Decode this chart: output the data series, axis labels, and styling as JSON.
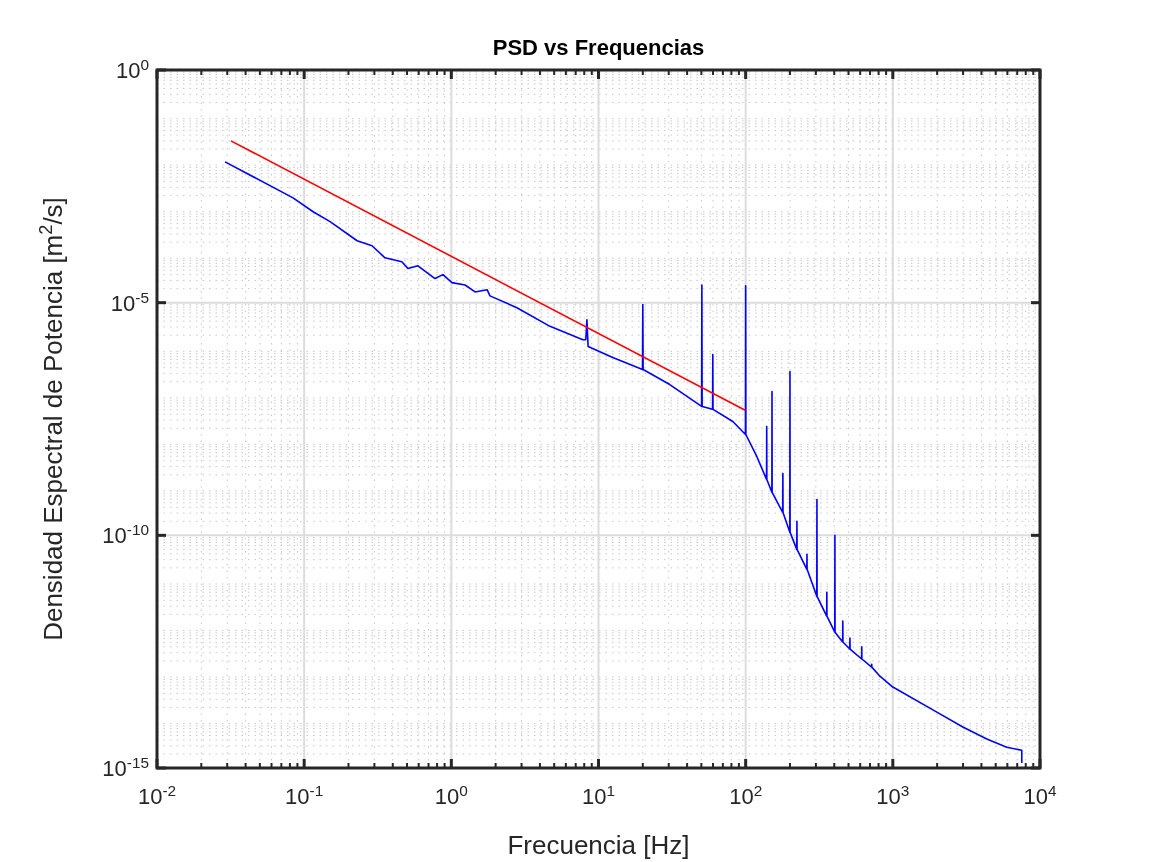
{
  "chart_data": {
    "type": "line",
    "title": "PSD vs Frequencias",
    "xlabel": "Frecuencia [Hz]",
    "ylabel": "Densidad Espectral de Potencia [m$^{2}$/s]",
    "log": "xy",
    "grid": true,
    "xlim": [
      0.01,
      10000
    ],
    "ylim": [
      1e-15,
      1
    ],
    "xticks": [
      {
        "value": 0.01,
        "label": "10$^{-2}$"
      },
      {
        "value": 0.1,
        "label": "10$^{-1}$"
      },
      {
        "value": 1,
        "label": "10$^{0}$"
      },
      {
        "value": 10,
        "label": "10$^{1}$"
      },
      {
        "value": 100,
        "label": "10$^{2}$"
      },
      {
        "value": 1000,
        "label": "10$^{3}$"
      },
      {
        "value": 10000,
        "label": "10$^{4}$"
      }
    ],
    "yticks": [
      {
        "value": 1e-15,
        "label": "10$^{-15}$"
      },
      {
        "value": 1e-10,
        "label": "10$^{-10}$"
      },
      {
        "value": 1e-05,
        "label": "10$^{-5}$"
      },
      {
        "value": 1,
        "label": "10$^{0}$"
      }
    ],
    "series": [
      {
        "color": "#0000ff",
        "x": [
          0.029,
          0.084,
          0.115,
          0.15,
          0.229,
          0.289,
          0.354,
          0.461,
          0.507,
          0.593,
          0.774,
          0.877,
          1.01,
          1.24,
          1.45,
          1.75,
          1.83,
          2.79,
          4.68,
          7.83,
          8.2,
          8.34,
          8.5,
          12.5,
          19.9,
          20.0,
          20.1,
          30.5,
          50.2,
          50.4,
          50.6,
          59.6,
          59.8,
          60.0,
          81.8,
          99.7,
          100,
          100.3,
          119,
          138.7,
          139,
          139.3,
          150.7,
          151,
          151.3,
          178.6,
          179,
          179.4,
          199.6,
          200,
          200.4,
          222.5,
          223,
          223.5,
          260.5,
          261,
          261.5,
          304.4,
          305,
          305.6,
          355.3,
          356,
          356.7,
          403.2,
          404,
          404.8,
          456,
          457,
          458,
          510,
          511,
          512,
          614,
          615,
          616,
          718,
          719,
          720,
          817,
          1000,
          1990,
          2990,
          4350,
          5940,
          7520,
          7521
        ],
        "values": [
          0.0106,
          0.00179,
          0.0009,
          0.00055,
          0.000214,
          0.000167,
          9.2e-05,
          7.6e-05,
          5.4e-05,
          6.2e-05,
          3.3e-05,
          4e-05,
          2.7e-05,
          2.4e-05,
          1.7e-05,
          1.9e-05,
          1.4e-05,
          7.8e-06,
          3.1e-06,
          1.6e-06,
          1.6e-06,
          4.3e-06,
          1.14e-06,
          6.6e-07,
          3.65e-07,
          9.1e-06,
          3.65e-07,
          1.74e-07,
          5.9e-08,
          2.4e-05,
          5.9e-08,
          5.1e-08,
          7.7e-07,
          5.1e-08,
          2.8e-08,
          1.47e-08,
          2.3e-05,
          1.47e-08,
          4.95e-09,
          1.59e-09,
          2.18e-08,
          1.59e-09,
          8.4e-10,
          1.23e-07,
          8.4e-10,
          3.1e-10,
          2.14e-09,
          3.1e-10,
          1.16e-10,
          3.3e-07,
          1.16e-10,
          5e-11,
          2e-10,
          5e-11,
          1.86e-11,
          3.9e-11,
          1.86e-11,
          4.9e-12,
          5.9e-10,
          4.9e-12,
          1.83e-12,
          6e-12,
          1.83e-12,
          8.3e-13,
          1e-10,
          8.3e-13,
          5.1e-13,
          1.43e-12,
          5.1e-13,
          3.6e-13,
          6.2e-13,
          3.6e-13,
          2.2e-13,
          4e-13,
          2.2e-13,
          1.47e-13,
          1.7e-13,
          1.47e-13,
          9.4e-14,
          5.5e-14,
          1.59e-14,
          7.6e-15,
          4.2e-15,
          2.8e-15,
          2.4e-15,
          1.28e-15
        ]
      },
      {
        "color": "#ff0000",
        "x": [
          0.0318,
          100
        ],
        "values": [
          0.03,
          4.8e-08
        ]
      }
    ]
  }
}
